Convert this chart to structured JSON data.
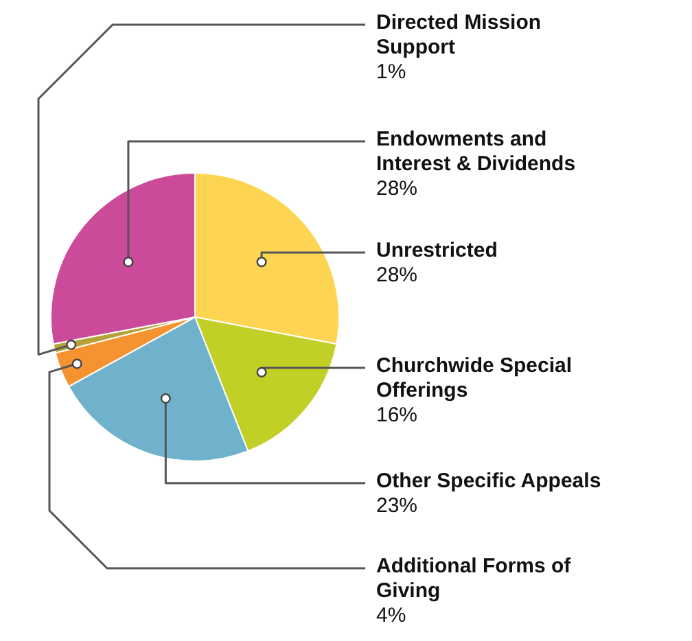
{
  "chart_data": {
    "type": "pie",
    "categories": [
      "Unrestricted",
      "Churchwide Special Offerings",
      "Other Specific Appeals",
      "Additional Forms of Giving",
      "Directed Mission Support",
      "Endowments and Interest & Dividends"
    ],
    "values": [
      28,
      16,
      23,
      4,
      1,
      28
    ],
    "colors": [
      "#fdd553",
      "#c2cf26",
      "#70b2cc",
      "#f59331",
      "#b5a135",
      "#cc4a9a"
    ],
    "value_labels": [
      "28%",
      "16%",
      "23%",
      "4%",
      "1%",
      "28%"
    ]
  }
}
